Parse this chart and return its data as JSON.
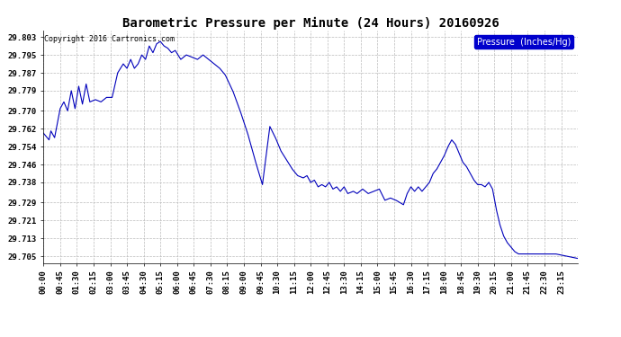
{
  "title": "Barometric Pressure per Minute (24 Hours) 20160926",
  "copyright": "Copyright 2016 Cartronics.com",
  "legend_label": "Pressure  (Inches/Hg)",
  "yticks": [
    29.803,
    29.795,
    29.787,
    29.779,
    29.77,
    29.762,
    29.754,
    29.746,
    29.738,
    29.729,
    29.721,
    29.713,
    29.705
  ],
  "ylim": [
    29.702,
    29.806
  ],
  "xtick_labels": [
    "00:00",
    "00:45",
    "01:30",
    "02:15",
    "03:00",
    "03:45",
    "04:30",
    "05:15",
    "06:00",
    "06:45",
    "07:30",
    "08:15",
    "09:00",
    "09:45",
    "10:30",
    "11:15",
    "12:00",
    "12:45",
    "13:30",
    "14:15",
    "15:00",
    "15:45",
    "16:30",
    "17:15",
    "18:00",
    "18:45",
    "19:30",
    "20:15",
    "21:00",
    "21:45",
    "22:30",
    "23:15"
  ],
  "line_color": "#0000bb",
  "background_color": "#ffffff",
  "grid_color": "#bbbbbb",
  "title_color": "#000000",
  "title_fontsize": 10,
  "copyright_fontsize": 6,
  "tick_fontsize": 6.5,
  "legend_bg": "#0000cc",
  "legend_fg": "#ffffff",
  "waypoints": [
    [
      0,
      29.76
    ],
    [
      15,
      29.757
    ],
    [
      20,
      29.761
    ],
    [
      30,
      29.758
    ],
    [
      45,
      29.771
    ],
    [
      55,
      29.774
    ],
    [
      65,
      29.77
    ],
    [
      75,
      29.779
    ],
    [
      85,
      29.771
    ],
    [
      95,
      29.781
    ],
    [
      105,
      29.773
    ],
    [
      115,
      29.782
    ],
    [
      125,
      29.774
    ],
    [
      140,
      29.775
    ],
    [
      155,
      29.774
    ],
    [
      170,
      29.776
    ],
    [
      185,
      29.776
    ],
    [
      200,
      29.787
    ],
    [
      215,
      29.791
    ],
    [
      225,
      29.789
    ],
    [
      235,
      29.793
    ],
    [
      245,
      29.789
    ],
    [
      255,
      29.791
    ],
    [
      265,
      29.795
    ],
    [
      275,
      29.793
    ],
    [
      285,
      29.799
    ],
    [
      295,
      29.796
    ],
    [
      305,
      29.8
    ],
    [
      315,
      29.801
    ],
    [
      325,
      29.799
    ],
    [
      335,
      29.798
    ],
    [
      345,
      29.796
    ],
    [
      355,
      29.797
    ],
    [
      370,
      29.793
    ],
    [
      385,
      29.795
    ],
    [
      400,
      29.794
    ],
    [
      415,
      29.793
    ],
    [
      430,
      29.795
    ],
    [
      445,
      29.793
    ],
    [
      460,
      29.791
    ],
    [
      475,
      29.789
    ],
    [
      490,
      29.786
    ],
    [
      510,
      29.779
    ],
    [
      530,
      29.77
    ],
    [
      550,
      29.76
    ],
    [
      570,
      29.748
    ],
    [
      590,
      29.737
    ],
    [
      610,
      29.763
    ],
    [
      625,
      29.758
    ],
    [
      640,
      29.752
    ],
    [
      655,
      29.748
    ],
    [
      670,
      29.744
    ],
    [
      685,
      29.741
    ],
    [
      700,
      29.74
    ],
    [
      710,
      29.741
    ],
    [
      720,
      29.738
    ],
    [
      730,
      29.739
    ],
    [
      740,
      29.736
    ],
    [
      750,
      29.737
    ],
    [
      760,
      29.736
    ],
    [
      770,
      29.738
    ],
    [
      780,
      29.735
    ],
    [
      790,
      29.736
    ],
    [
      800,
      29.734
    ],
    [
      810,
      29.736
    ],
    [
      820,
      29.733
    ],
    [
      835,
      29.734
    ],
    [
      845,
      29.733
    ],
    [
      860,
      29.735
    ],
    [
      875,
      29.733
    ],
    [
      890,
      29.734
    ],
    [
      905,
      29.735
    ],
    [
      920,
      29.73
    ],
    [
      935,
      29.731
    ],
    [
      950,
      29.73
    ],
    [
      960,
      29.729
    ],
    [
      970,
      29.728
    ],
    [
      980,
      29.733
    ],
    [
      990,
      29.736
    ],
    [
      1000,
      29.734
    ],
    [
      1010,
      29.736
    ],
    [
      1020,
      29.734
    ],
    [
      1030,
      29.736
    ],
    [
      1040,
      29.738
    ],
    [
      1050,
      29.742
    ],
    [
      1060,
      29.744
    ],
    [
      1070,
      29.747
    ],
    [
      1080,
      29.75
    ],
    [
      1090,
      29.754
    ],
    [
      1100,
      29.757
    ],
    [
      1110,
      29.755
    ],
    [
      1120,
      29.751
    ],
    [
      1130,
      29.747
    ],
    [
      1140,
      29.745
    ],
    [
      1150,
      29.742
    ],
    [
      1160,
      29.739
    ],
    [
      1170,
      29.737
    ],
    [
      1180,
      29.737
    ],
    [
      1190,
      29.736
    ],
    [
      1200,
      29.738
    ],
    [
      1210,
      29.735
    ],
    [
      1220,
      29.726
    ],
    [
      1230,
      29.719
    ],
    [
      1240,
      29.714
    ],
    [
      1250,
      29.711
    ],
    [
      1260,
      29.709
    ],
    [
      1270,
      29.707
    ],
    [
      1280,
      29.706
    ],
    [
      1300,
      29.706
    ],
    [
      1320,
      29.706
    ],
    [
      1350,
      29.706
    ],
    [
      1380,
      29.706
    ],
    [
      1410,
      29.705
    ],
    [
      1439,
      29.704
    ]
  ]
}
